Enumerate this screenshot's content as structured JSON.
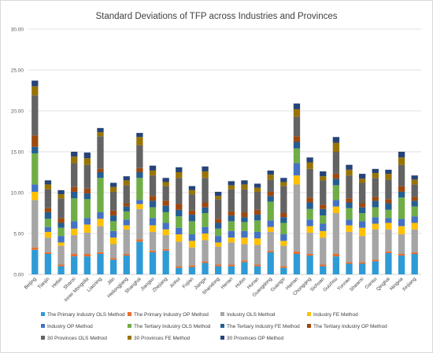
{
  "chart_data": {
    "type": "bar",
    "stacked": true,
    "title": "Standard Deviations of TFP across Industries and Provinces",
    "xlabel": "",
    "ylabel": "",
    "ylim": [
      0,
      30
    ],
    "y_ticks": [
      "0.00",
      "5.00",
      "10.00",
      "15.00",
      "20.00",
      "25.00",
      "30.00"
    ],
    "grid": true,
    "legend_position": "bottom",
    "categories": [
      "Beijing",
      "Tianjin",
      "Hebei",
      "Shanxi",
      "Inner Mongolia",
      "Liaoning",
      "Jilin",
      "Heilongjiang",
      "Shanghai",
      "Jiangsu",
      "Zhejiang",
      "Anhui",
      "Fujian",
      "Jiangxi",
      "Shandong",
      "Henan",
      "Hubei",
      "Hunan",
      "Guangdong",
      "Guangxi",
      "Hainan",
      "Chongqing",
      "Sichuan",
      "Guizhou",
      "Yunnan",
      "Shaanxi",
      "Gansu",
      "Qinghai",
      "Ningxia",
      "Xinjiang"
    ],
    "series": [
      {
        "name": "The Primary Industry OLS Method",
        "color": "#2E9BD6",
        "values": [
          3.0,
          2.5,
          1.0,
          2.2,
          2.2,
          2.5,
          1.8,
          2.3,
          4.0,
          2.7,
          2.9,
          0.8,
          0.9,
          1.4,
          1.0,
          1.0,
          1.5,
          1.0,
          2.7,
          0.8,
          2.5,
          2.3,
          1.0,
          2.2,
          1.3,
          1.3,
          1.6,
          2.6,
          2.3,
          2.5
        ]
      },
      {
        "name": "The Primary Industry OP Method",
        "color": "#E86E2C",
        "values": [
          0.3,
          0.2,
          0.2,
          0.3,
          0.3,
          0.2,
          0.2,
          0.2,
          0.3,
          0.2,
          0.2,
          0.2,
          0.2,
          0.2,
          0.2,
          0.2,
          0.2,
          0.2,
          0.2,
          0.2,
          0.3,
          0.2,
          0.2,
          0.3,
          0.2,
          0.2,
          0.2,
          0.2,
          0.2,
          0.2
        ]
      },
      {
        "name": "Industry OLS Method",
        "color": "#A5A5A5",
        "values": [
          5.8,
          1.8,
          2.3,
          2.3,
          2.6,
          3.2,
          1.7,
          3.0,
          3.7,
          2.3,
          1.7,
          3.0,
          2.2,
          2.6,
          2.2,
          2.7,
          2.0,
          2.4,
          2.3,
          2.5,
          8.2,
          2.6,
          3.3,
          5.0,
          3.7,
          3.2,
          3.7,
          2.7,
          2.4,
          2.8
        ]
      },
      {
        "name": "Industry FE Method",
        "color": "#FFC000",
        "values": [
          1.0,
          0.7,
          0.4,
          0.8,
          1.0,
          0.9,
          0.8,
          0.5,
          0.6,
          0.8,
          0.7,
          0.9,
          0.8,
          0.8,
          0.5,
          0.6,
          0.8,
          0.8,
          0.6,
          0.6,
          1.1,
          0.8,
          0.8,
          0.8,
          0.8,
          1.0,
          0.7,
          0.8,
          1.0,
          0.8
        ]
      },
      {
        "name": "Industry OP Method",
        "color": "#4472C4",
        "values": [
          0.9,
          0.6,
          0.8,
          0.9,
          0.8,
          0.8,
          0.8,
          0.7,
          0.5,
          0.9,
          0.8,
          0.8,
          0.8,
          0.8,
          0.8,
          0.8,
          0.8,
          0.8,
          0.8,
          0.8,
          1.5,
          0.8,
          0.9,
          0.8,
          0.7,
          0.8,
          0.8,
          0.6,
          0.9,
          0.8
        ]
      },
      {
        "name": "The Tertiary Industry OLS Method",
        "color": "#70AD47",
        "values": [
          3.8,
          1.0,
          1.0,
          2.8,
          2.3,
          4.2,
          1.2,
          1.0,
          2.7,
          1.3,
          1.3,
          1.4,
          1.6,
          1.7,
          0.9,
          1.2,
          1.1,
          1.4,
          2.3,
          1.4,
          1.8,
          1.3,
          1.0,
          1.8,
          1.4,
          1.0,
          1.2,
          1.0,
          2.6,
          1.2
        ]
      },
      {
        "name": "The Tertiary Industry FE Method",
        "color": "#255E91",
        "values": [
          0.8,
          0.8,
          0.6,
          0.8,
          0.7,
          0.7,
          0.7,
          0.6,
          0.7,
          0.8,
          0.8,
          0.8,
          0.8,
          0.7,
          0.7,
          0.7,
          0.6,
          0.7,
          0.7,
          0.7,
          0.8,
          0.8,
          0.8,
          0.8,
          0.7,
          0.7,
          0.8,
          0.8,
          0.7,
          0.7
        ]
      },
      {
        "name": "The Tertiary Industry OP Method",
        "color": "#9E480E",
        "values": [
          1.4,
          0.5,
          0.6,
          0.6,
          0.6,
          0.4,
          0.6,
          0.4,
          0.5,
          0.6,
          0.6,
          0.7,
          0.5,
          0.6,
          0.5,
          0.5,
          0.6,
          0.6,
          0.5,
          0.5,
          0.7,
          0.6,
          0.5,
          0.6,
          0.5,
          0.5,
          0.5,
          0.5,
          0.7,
          0.5
        ]
      },
      {
        "name": "30 Provinces OLS Method",
        "color": "#636363",
        "values": [
          4.9,
          2.3,
          2.4,
          2.9,
          2.9,
          4.0,
          2.3,
          2.2,
          2.8,
          2.5,
          1.8,
          3.2,
          2.0,
          3.0,
          2.4,
          2.7,
          2.8,
          2.2,
          1.5,
          3.3,
          2.4,
          3.5,
          3.0,
          2.7,
          2.8,
          2.5,
          2.3,
          2.4,
          2.6,
          1.5
        ]
      },
      {
        "name": "30 Provinces FE Method",
        "color": "#997300",
        "values": [
          1.1,
          0.6,
          0.5,
          0.8,
          0.8,
          0.5,
          0.6,
          0.6,
          1.0,
          0.6,
          0.5,
          0.7,
          0.5,
          0.8,
          0.4,
          0.5,
          0.6,
          0.5,
          0.6,
          0.5,
          0.9,
          0.8,
          0.5,
          1.1,
          0.7,
          0.5,
          0.6,
          0.7,
          0.9,
          0.6
        ]
      },
      {
        "name": "30 Provinces OP Method",
        "color": "#264478",
        "values": [
          0.7,
          0.5,
          0.5,
          0.6,
          0.7,
          0.5,
          0.5,
          0.5,
          0.5,
          0.6,
          0.5,
          0.6,
          0.5,
          0.6,
          0.5,
          0.5,
          0.5,
          0.5,
          0.5,
          0.5,
          0.7,
          0.6,
          0.6,
          0.7,
          0.6,
          0.6,
          0.5,
          0.5,
          0.7,
          0.5
        ]
      }
    ]
  }
}
